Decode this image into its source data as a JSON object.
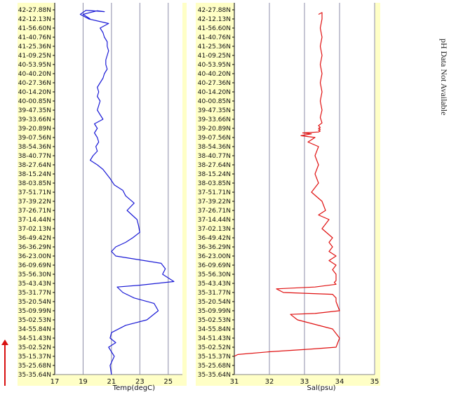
{
  "latitudes": [
    "42-27.88N",
    "42-12.13N",
    "41-56.60N",
    "41-40.76N",
    "41-25.36N",
    "41-09.25N",
    "40-53.95N",
    "40-40.20N",
    "40-27.36N",
    "40-14.20N",
    "40-00.85N",
    "39-47.35N",
    "39-33.66N",
    "39-20.89N",
    "39-07.56N",
    "38-54.36N",
    "38-40.77N",
    "38-27.64N",
    "38-15.24N",
    "38-03.85N",
    "37-51.71N",
    "37-39.22N",
    "37-26.71N",
    "37-14.44N",
    "37-02.13N",
    "36-49.42N",
    "36-36.29N",
    "36-23.00N",
    "36-09.69N",
    "35-56.30N",
    "35-43.43N",
    "35-31.77N",
    "35-20.54N",
    "35-09.99N",
    "35-02.53N",
    "34-55.84N",
    "34-51.43N",
    "35-02.52N",
    "35-15.37N",
    "35-25.68N",
    "35-35.64N"
  ],
  "note": "pH Data Not Available",
  "colors": {
    "panel_bg": "#ffffc6",
    "grid": "#8c8ca8",
    "temp_line": "#1a1ad6",
    "sal_line": "#e01010",
    "arrow": "#d81010"
  },
  "direction_icon": "up-arrow-icon",
  "chart_data": [
    {
      "type": "line",
      "xlabel": "Temp(degC)",
      "xlim": [
        17,
        26
      ],
      "xticks": [
        17,
        19,
        21,
        23,
        25
      ],
      "ylabel": "",
      "grid": "vertical",
      "series": [
        {
          "x": [
            19.5,
            19.0,
            20.0,
            20.5,
            19.2,
            18.8,
            19.4,
            20.8,
            20.2,
            20.4,
            20.5,
            20.7,
            20.7,
            20.8,
            20.7,
            20.6,
            20.6,
            20.7,
            20.5,
            20.4,
            20.2,
            20.0,
            20.1,
            20.0,
            20.2,
            20.1,
            20.0,
            20.2,
            20.4,
            19.8,
            20.0,
            19.8,
            20.0,
            20.1,
            19.9,
            20.0,
            19.7,
            19.5,
            20.0,
            20.4,
            20.9,
            21.2,
            21.8,
            22.0,
            22.6,
            22.1,
            22.8,
            22.9,
            23.0,
            22.5,
            22.0,
            21.3,
            21.0,
            21.3,
            24.5,
            24.8,
            24.6,
            25.4,
            23.0,
            21.4,
            21.8,
            22.6,
            24.0,
            24.3,
            23.5,
            22.0,
            21.0,
            20.9,
            21.3,
            20.8,
            21.2,
            20.9,
            21.0
          ],
          "y": [
            1,
            0.5,
            0.1,
            0.2,
            0.05,
            0.5,
            1.0,
            1.5,
            2.0,
            2.5,
            3.0,
            3.5,
            4.0,
            4.5,
            5.0,
            5.5,
            6.0,
            6.5,
            7.0,
            7.5,
            8.0,
            8.5,
            9.0,
            9.5,
            10.0,
            10.5,
            11.0,
            11.5,
            12.0,
            12.5,
            13.0,
            13.5,
            14.0,
            14.5,
            15.0,
            15.5,
            16.0,
            16.5,
            17.0,
            17.5,
            18.5,
            19.2,
            19.8,
            20.4,
            21.2,
            22.0,
            23.0,
            23.6,
            24.4,
            25.0,
            25.5,
            26.0,
            26.5,
            27.0,
            27.8,
            28.4,
            29.0,
            29.8,
            30.2,
            30.4,
            31.0,
            31.6,
            32.2,
            33.0,
            34.0,
            34.6,
            35.4,
            36.0,
            36.5,
            37.0,
            38.0,
            39.0,
            40.0
          ]
        }
      ]
    },
    {
      "type": "line",
      "xlabel": "Sal(psu)",
      "xlim": [
        31,
        35
      ],
      "xticks": [
        31,
        32,
        33,
        34,
        35
      ],
      "ylabel": "",
      "grid": "vertical",
      "series": [
        {
          "x": [
            33.4,
            33.5,
            33.5,
            33.45,
            33.5,
            33.45,
            33.5,
            33.45,
            33.5,
            33.45,
            33.5,
            33.45,
            33.5,
            33.45,
            33.5,
            33.4,
            33.45,
            33.4,
            33.45,
            33.4,
            33.45,
            33.4,
            32.95,
            33.2,
            32.9,
            33.3,
            33.1,
            33.4,
            33.3,
            33.4,
            33.3,
            33.4,
            33.2,
            33.5,
            33.6,
            33.4,
            33.7,
            33.5,
            33.8,
            33.7,
            33.8,
            33.7,
            33.9,
            33.7,
            33.9,
            33.8,
            33.9,
            33.9,
            33.9,
            33.85,
            33.9,
            33.3,
            32.2,
            32.4,
            33.8,
            33.9,
            33.9,
            34.0,
            33.3,
            32.6,
            32.8,
            33.8,
            33.9,
            34.0,
            33.9,
            33.2,
            32.0,
            31.1,
            31.0
          ],
          "y": [
            0.5,
            0.3,
            1.0,
            2.0,
            3.0,
            4.0,
            5.0,
            6.0,
            7.0,
            8.0,
            9.0,
            10.0,
            11.0,
            11.8,
            12.4,
            12.7,
            12.9,
            13.0,
            13.1,
            13.2,
            13.3,
            13.4,
            13.5,
            13.6,
            13.8,
            14.0,
            14.5,
            15.0,
            16.0,
            17.0,
            18.0,
            19.0,
            20.0,
            21.0,
            22.0,
            22.5,
            23.0,
            24.0,
            25.0,
            25.5,
            26.0,
            26.5,
            27.0,
            27.5,
            28.0,
            28.5,
            29.0,
            29.4,
            29.7,
            29.9,
            30.1,
            30.4,
            30.6,
            31.0,
            31.2,
            31.6,
            32.0,
            33.0,
            33.3,
            33.4,
            34.0,
            35.0,
            35.5,
            36.0,
            37.0,
            37.2,
            37.5,
            37.8,
            38.0
          ]
        }
      ]
    }
  ]
}
